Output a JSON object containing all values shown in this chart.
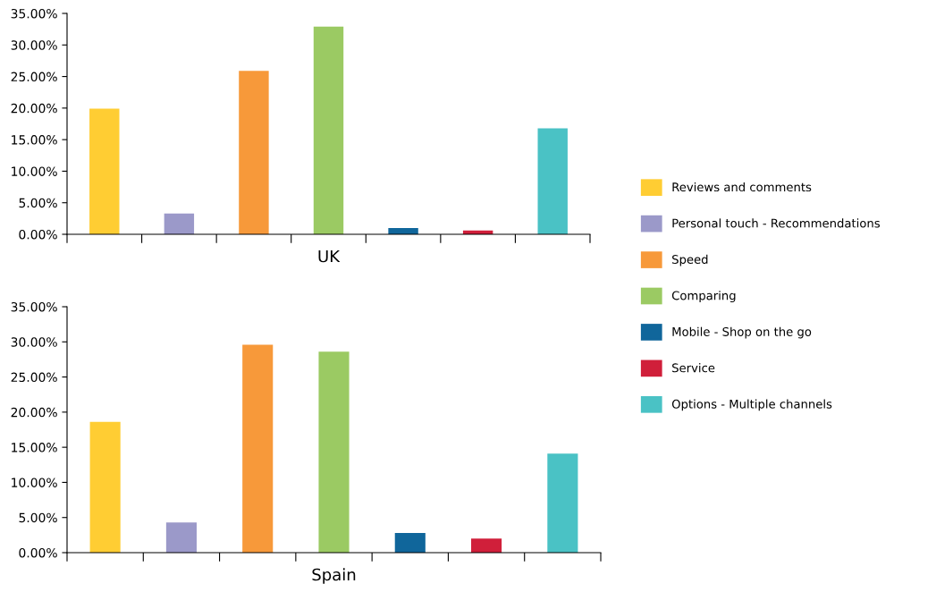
{
  "chart_data": [
    {
      "type": "bar",
      "xlabel": "UK",
      "categories": [
        null,
        null,
        null,
        null,
        null,
        null,
        null
      ],
      "stacked": true,
      "series": [
        {
          "name": "Reviews and comments",
          "color": "#ffcd33",
          "values": [
            19.9,
            null,
            null,
            null,
            null,
            null,
            null
          ]
        },
        {
          "name": "Personal touch - Recommendations",
          "color": "#9b99c9",
          "values": [
            null,
            3.3,
            null,
            null,
            null,
            null,
            null
          ]
        },
        {
          "name": "Speed",
          "color": "#f7993a",
          "values": [
            null,
            null,
            25.9,
            null,
            null,
            null,
            null
          ]
        },
        {
          "name": "Comparing",
          "color": "#9bca63",
          "values": [
            null,
            null,
            null,
            32.9,
            null,
            null,
            null
          ]
        },
        {
          "name": "Mobile - Shop on the go",
          "color": "#10669b",
          "values": [
            null,
            null,
            null,
            null,
            1.0,
            null,
            null
          ]
        },
        {
          "name": "Service",
          "color": "#d01f3a",
          "values": [
            null,
            null,
            null,
            null,
            null,
            0.6,
            null
          ]
        },
        {
          "name": "Options - Multiple channels",
          "color": "#4ac2c5",
          "values": [
            null,
            null,
            null,
            null,
            null,
            null,
            16.8
          ]
        }
      ],
      "ylim": [
        0,
        35
      ],
      "yticks": [
        {
          "value": 0,
          "label": "0.00%"
        },
        {
          "value": 5,
          "label": "5.00%"
        },
        {
          "value": 10,
          "label": "10.00%"
        },
        {
          "value": 15,
          "label": "15.00%"
        },
        {
          "value": 20,
          "label": "20.00%"
        },
        {
          "value": 25,
          "label": "25.00%"
        },
        {
          "value": 30,
          "label": "30.00%"
        },
        {
          "value": 35,
          "label": "35.00%"
        }
      ],
      "legend": "right"
    },
    {
      "type": "bar",
      "xlabel": "Spain",
      "categories": [
        null,
        null,
        null,
        null,
        null,
        null,
        null
      ],
      "stacked": true,
      "series": [
        {
          "color": "#ffcd33",
          "values": [
            18.6,
            null,
            null,
            null,
            null,
            null,
            null
          ]
        },
        {
          "color": "#9b99c9",
          "values": [
            null,
            4.3,
            null,
            null,
            null,
            null,
            null
          ]
        },
        {
          "color": "#f7993a",
          "values": [
            null,
            null,
            29.6,
            null,
            null,
            null,
            null
          ]
        },
        {
          "color": "#9bca63",
          "values": [
            null,
            null,
            null,
            28.6,
            null,
            null,
            null
          ]
        },
        {
          "color": "#10669b",
          "values": [
            null,
            null,
            null,
            null,
            2.8,
            null,
            null
          ]
        },
        {
          "color": "#d01f3a",
          "values": [
            null,
            null,
            null,
            null,
            null,
            2.0,
            null
          ]
        },
        {
          "color": "#4ac2c5",
          "values": [
            null,
            null,
            null,
            null,
            null,
            null,
            14.1
          ]
        }
      ],
      "ylim": [
        0,
        35
      ],
      "yticks": [
        {
          "value": 0,
          "label": "0.00%"
        },
        {
          "value": 5,
          "label": "5.00%"
        },
        {
          "value": 10,
          "label": "10.00%"
        },
        {
          "value": 15,
          "label": "15.00%"
        },
        {
          "value": 20,
          "label": "20.00%"
        },
        {
          "value": 25,
          "label": "25.00%"
        },
        {
          "value": 30,
          "label": "30.00%"
        },
        {
          "value": 35,
          "label": "35.00%"
        }
      ]
    }
  ]
}
